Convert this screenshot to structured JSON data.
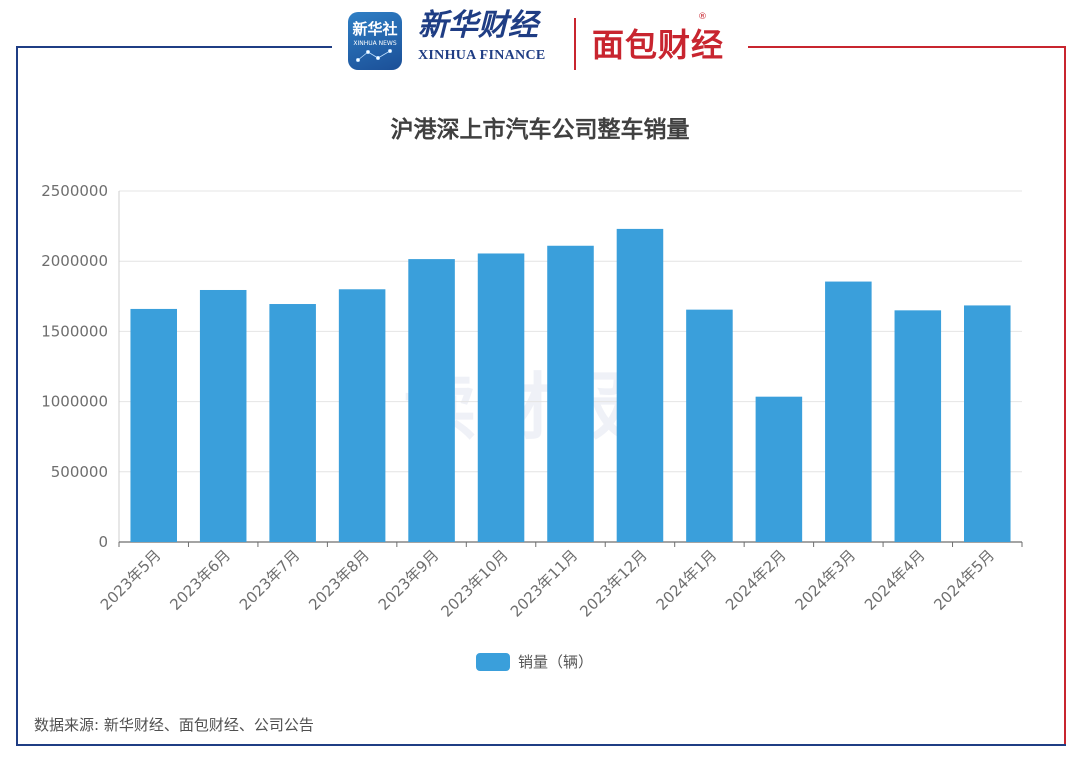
{
  "header": {
    "xinhua_icon_label": "新华社",
    "xinhua_icon_sub": "XINHUA NEWS",
    "brand_cn": "新华财经",
    "brand_en": "XINHUA FINANCE",
    "brand2": "面包财经",
    "registered_mark": "®"
  },
  "watermark": "读财报",
  "footer": {
    "source": "数据来源: 新华财经、面包财经、公司公告"
  },
  "colors": {
    "bar": "#3a9fdb",
    "frame_blue": "#1f3d84",
    "frame_red": "#c8252f"
  },
  "chart_data": {
    "type": "bar",
    "title": "沪港深上市汽车公司整车销量",
    "categories": [
      "2023年5月",
      "2023年6月",
      "2023年7月",
      "2023年8月",
      "2023年9月",
      "2023年10月",
      "2023年11月",
      "2023年12月",
      "2024年1月",
      "2024年2月",
      "2024年3月",
      "2024年4月",
      "2024年5月"
    ],
    "series": [
      {
        "name": "销量（辆）",
        "values": [
          1660000,
          1795000,
          1695000,
          1800000,
          2015000,
          2055000,
          2110000,
          2230000,
          1655000,
          1035000,
          1855000,
          1650000,
          1685000
        ]
      }
    ],
    "ylim": [
      0,
      2500000
    ],
    "yticks": [
      "0",
      "500000",
      "1000000",
      "1500000",
      "2000000",
      "2500000"
    ],
    "grid": true,
    "legend_position": "bottom"
  }
}
